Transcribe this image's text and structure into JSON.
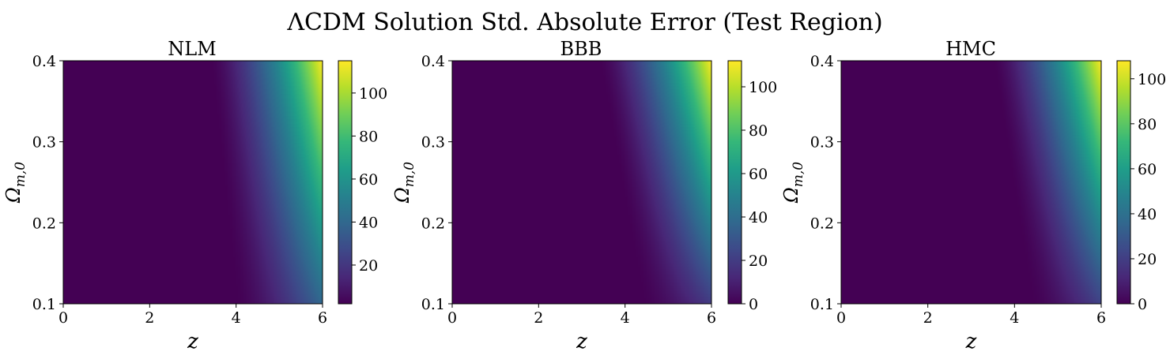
{
  "figure": {
    "title": "ΛCDM Solution Std. Absolute Error (Test Region)"
  },
  "colors": {
    "viridis": [
      "#440154",
      "#482878",
      "#3e4989",
      "#31688e",
      "#26828e",
      "#1f9e89",
      "#35b779",
      "#6ece58",
      "#b5de2b",
      "#fde725"
    ]
  },
  "chart_data": [
    {
      "type": "heatmap",
      "title": "NLM",
      "xlabel": "z",
      "ylabel": "Ω_{m,0}",
      "xlim": [
        0,
        6
      ],
      "ylim": [
        0.1,
        0.4
      ],
      "xticks": [
        "0",
        "2",
        "4",
        "6"
      ],
      "yticks": [
        "0.1",
        "0.2",
        "0.3",
        "0.4"
      ],
      "colorbar": {
        "min": 2,
        "max": 115,
        "ticks": [
          "20",
          "40",
          "60",
          "80",
          "100"
        ],
        "tick_values": [
          20,
          40,
          60,
          80,
          100
        ]
      },
      "onset_z_at_low_omega": 4.0,
      "onset_z_at_high_omega": 3.4,
      "value_at_z6_omega04": 115,
      "value_at_z6_omega01": 40
    },
    {
      "type": "heatmap",
      "title": "BBB",
      "xlabel": "z",
      "ylabel": "Ω_{m,0}",
      "xlim": [
        0,
        6
      ],
      "ylim": [
        0.1,
        0.4
      ],
      "xticks": [
        "0",
        "2",
        "4",
        "6"
      ],
      "yticks": [
        "0.1",
        "0.2",
        "0.3",
        "0.4"
      ],
      "colorbar": {
        "min": 0,
        "max": 112,
        "ticks": [
          "0",
          "20",
          "40",
          "60",
          "80",
          "100"
        ],
        "tick_values": [
          0,
          20,
          40,
          60,
          80,
          100
        ]
      },
      "onset_z_at_low_omega": 4.4,
      "onset_z_at_high_omega": 3.4,
      "value_at_z6_omega04": 112,
      "value_at_z6_omega01": 20
    },
    {
      "type": "heatmap",
      "title": "HMC",
      "xlabel": "z",
      "ylabel": "Ω_{m,0}",
      "xlim": [
        0,
        6
      ],
      "ylim": [
        0.1,
        0.4
      ],
      "xticks": [
        "0",
        "2",
        "4",
        "6"
      ],
      "yticks": [
        "0.1",
        "0.2",
        "0.3",
        "0.4"
      ],
      "colorbar": {
        "min": 0,
        "max": 108,
        "ticks": [
          "0",
          "20",
          "40",
          "60",
          "80",
          "100"
        ],
        "tick_values": [
          0,
          20,
          40,
          60,
          80,
          100
        ]
      },
      "onset_z_at_low_omega": 4.4,
      "onset_z_at_high_omega": 3.5,
      "value_at_z6_omega04": 108,
      "value_at_z6_omega01": 22
    }
  ]
}
